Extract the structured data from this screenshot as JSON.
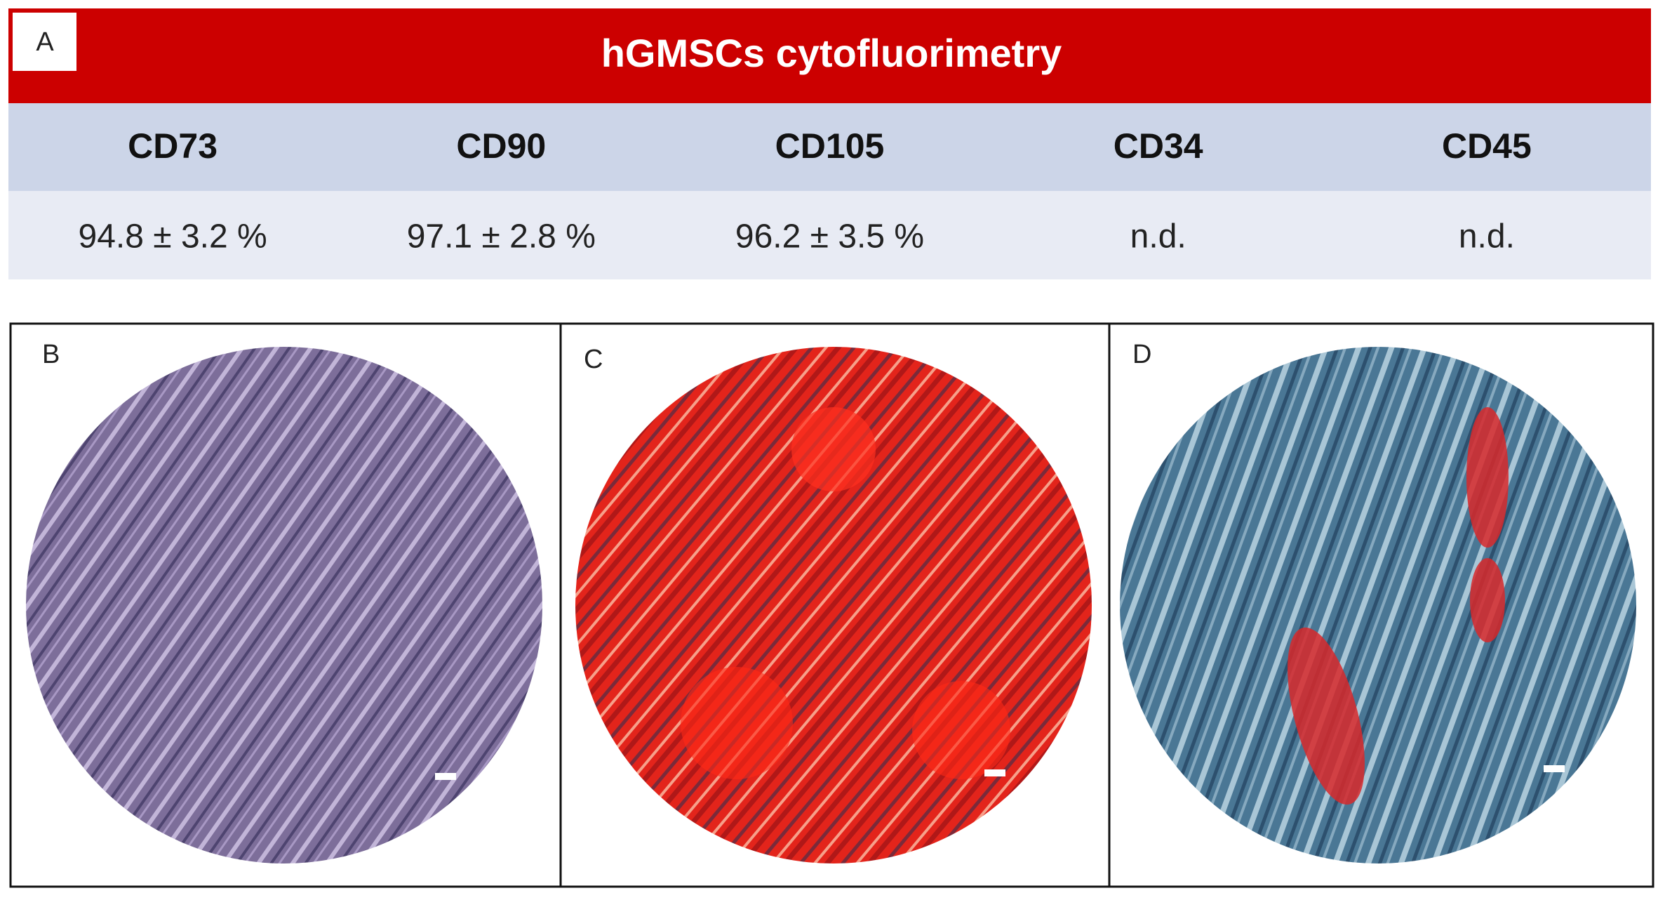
{
  "panel_a": {
    "label": "A",
    "title": "hGMSCs cytofluorimetry",
    "table": {
      "headers": [
        "CD73",
        "CD90",
        "CD105",
        "CD34",
        "CD45"
      ],
      "rows": [
        [
          "94.8 ± 3.2 %",
          "97.1 ± 2.8 %",
          "96.2 ± 3.5 %",
          "n.d.",
          "n.d."
        ]
      ]
    }
  },
  "panels": [
    {
      "label": "B"
    },
    {
      "label": "C"
    },
    {
      "label": "D"
    }
  ]
}
